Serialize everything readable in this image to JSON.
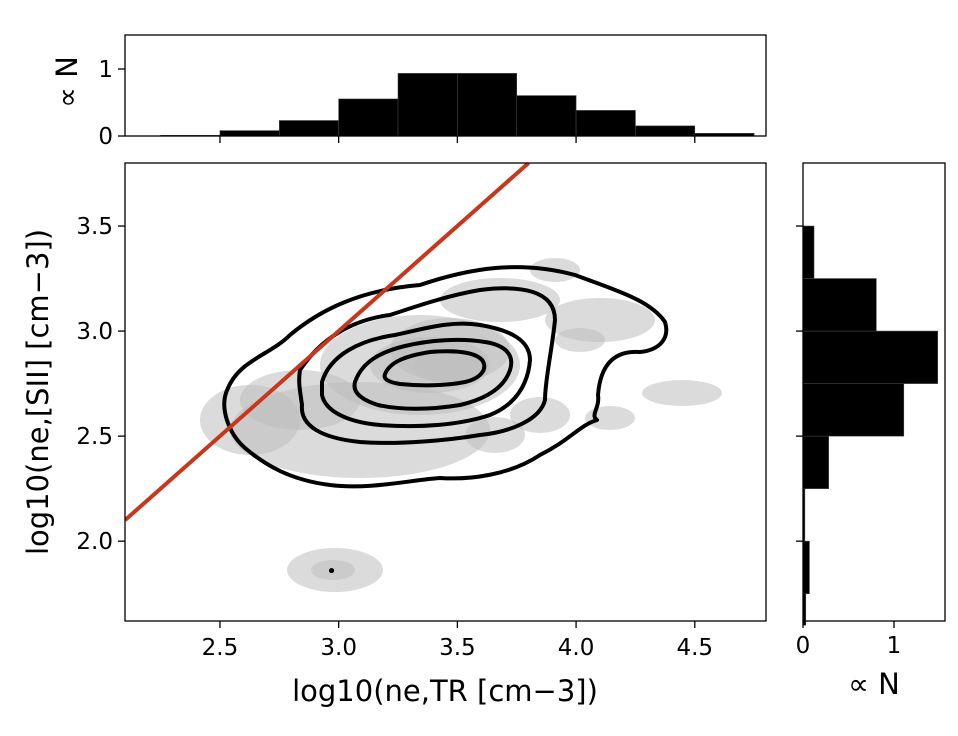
{
  "chart_data": [
    {
      "id": "main",
      "type": "scatter",
      "xlabel": "log10(ne,TR [cm−3])",
      "ylabel": "log10(ne,[SII] [cm−3])",
      "xlim": [
        2.1,
        4.8
      ],
      "ylim": [
        1.62,
        3.8
      ],
      "xticks": [
        "2.5",
        "3.0",
        "3.5",
        "4.0",
        "4.5"
      ],
      "yticks": [
        "2.0",
        "2.5",
        "3.0",
        "3.5"
      ],
      "one_to_one_line": {
        "color": "#c8361b",
        "x": [
          2.1,
          3.8
        ],
        "y": [
          2.1,
          3.8
        ]
      },
      "grey_blobs_color": "#bdbdbd",
      "contour_color": "#000000",
      "contour_levels": 5,
      "outlier_point": {
        "x": 2.97,
        "y": 1.86
      }
    },
    {
      "id": "top-histogram",
      "type": "bar",
      "ylabel": "∝ N",
      "ylim": [
        0,
        1.5
      ],
      "yticks": [
        "0",
        "1"
      ],
      "bin_edges": [
        2.25,
        2.5,
        2.75,
        3.0,
        3.25,
        3.5,
        3.75,
        4.0,
        4.25,
        4.5,
        4.75
      ],
      "values": [
        0.01,
        0.08,
        0.23,
        0.55,
        0.93,
        0.93,
        0.6,
        0.38,
        0.15,
        0.04
      ]
    },
    {
      "id": "right-histogram",
      "type": "bar",
      "orientation": "horizontal",
      "xlabel": "∝ N",
      "xlim": [
        0,
        1.55
      ],
      "xticks": [
        "0",
        "1"
      ],
      "bin_edges": [
        1.6,
        1.75,
        2.0,
        2.25,
        2.5,
        2.75,
        3.0,
        3.25,
        3.5
      ],
      "values": [
        0.03,
        0.07,
        0.02,
        0.28,
        1.1,
        1.47,
        0.8,
        0.12
      ]
    }
  ]
}
